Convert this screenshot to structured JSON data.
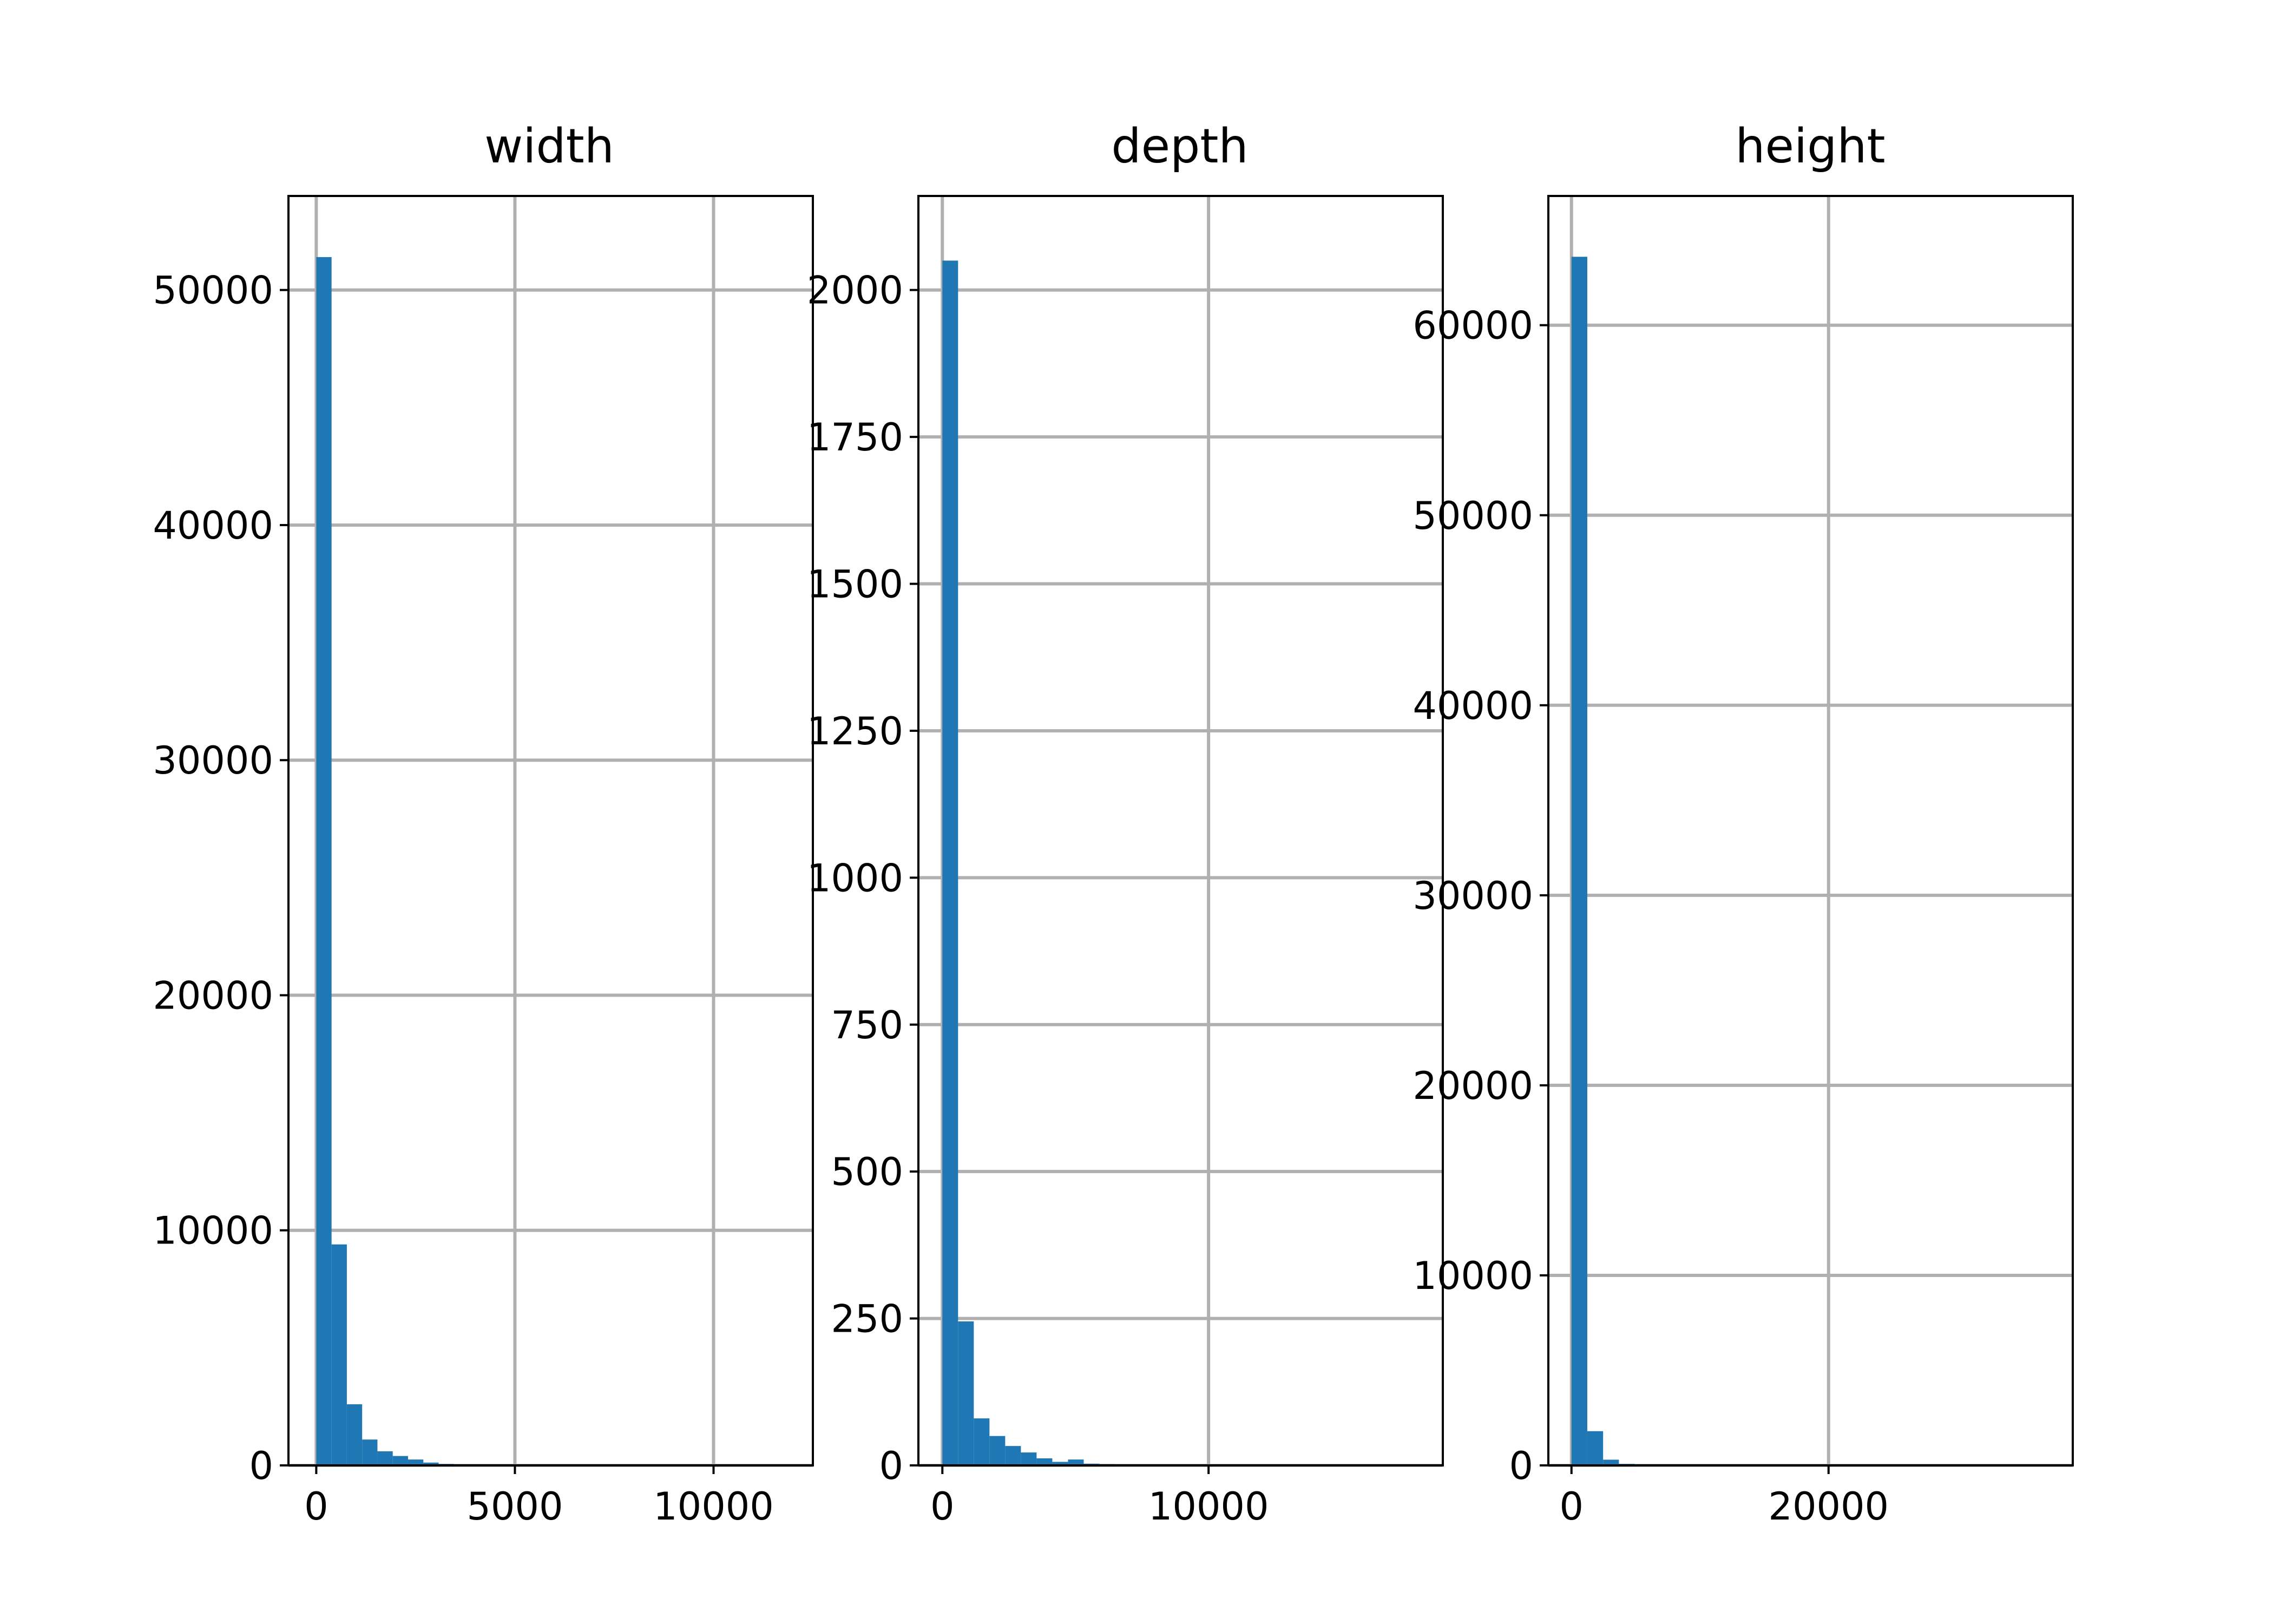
{
  "colors": {
    "bar": "#1f77b4",
    "grid": "#b0b0b0",
    "axis": "#000000"
  },
  "chart_data": [
    {
      "type": "histogram",
      "title": "width",
      "xlim": [
        -700,
        12500
      ],
      "ylim": [
        0,
        54000
      ],
      "xticks": [
        0,
        5000,
        10000
      ],
      "xtick_labels": [
        "0",
        "5000",
        "10000"
      ],
      "yticks": [
        0,
        10000,
        20000,
        30000,
        40000,
        50000
      ],
      "ytick_labels": [
        "0",
        "10000",
        "20000",
        "30000",
        "40000",
        "50000"
      ],
      "grid": true,
      "bin_edges": [
        0,
        385,
        770,
        1155,
        1540,
        1925,
        2310,
        2695,
        3080,
        3465,
        3850,
        4235,
        4620,
        5005,
        5390,
        5775,
        6160,
        6545,
        6930,
        7315,
        7700,
        8085,
        8470,
        8855,
        9240,
        9625,
        10010,
        10395,
        10780,
        11165,
        11550
      ],
      "counts": [
        51400,
        9400,
        2600,
        1100,
        600,
        400,
        250,
        120,
        60,
        30,
        15,
        8,
        5,
        3,
        2,
        1,
        1,
        1,
        0,
        0,
        0,
        0,
        0,
        0,
        0,
        0,
        0,
        0,
        0,
        1
      ]
    },
    {
      "type": "histogram",
      "title": "depth",
      "xlim": [
        -900,
        18800
      ],
      "ylim": [
        0,
        2160
      ],
      "xticks": [
        0,
        10000
      ],
      "xtick_labels": [
        "0",
        "10000"
      ],
      "yticks": [
        0,
        250,
        500,
        750,
        1000,
        1250,
        1500,
        1750,
        2000
      ],
      "ytick_labels": [
        "0",
        "250",
        "500",
        "750",
        "1000",
        "1250",
        "1500",
        "1750",
        "2000"
      ],
      "grid": true,
      "bin_edges": [
        0,
        590,
        1180,
        1770,
        2360,
        2950,
        3540,
        4130,
        4720,
        5310,
        5900,
        6490,
        7080,
        7670,
        8260,
        8850,
        9440,
        10030,
        10620,
        11210,
        11800,
        12390,
        12980,
        13570,
        14160,
        14750,
        15340,
        15930,
        16520,
        17110,
        17700
      ],
      "counts": [
        2050,
        245,
        80,
        50,
        33,
        22,
        12,
        6,
        10,
        3,
        2,
        1,
        1,
        0,
        1,
        0,
        0,
        0,
        0,
        0,
        0,
        0,
        0,
        0,
        0,
        0,
        0,
        0,
        0,
        1
      ]
    },
    {
      "type": "histogram",
      "title": "height",
      "xlim": [
        -1800,
        39000
      ],
      "ylim": [
        0,
        66800
      ],
      "xticks": [
        0,
        20000
      ],
      "xtick_labels": [
        "0",
        "20000"
      ],
      "yticks": [
        0,
        10000,
        20000,
        30000,
        40000,
        50000,
        60000
      ],
      "ytick_labels": [
        "0",
        "10000",
        "20000",
        "30000",
        "40000",
        "50000",
        "60000"
      ],
      "grid": true,
      "bin_edges": [
        0,
        1230,
        2460,
        3690,
        4920,
        6150,
        7380,
        8610,
        9840,
        11070,
        12300,
        13530,
        14760,
        15990,
        17220,
        18450,
        19680,
        20910,
        22140,
        23370,
        24600,
        25830,
        27060,
        28290,
        29520,
        30750,
        31980,
        33210,
        34440,
        35670,
        36900
      ],
      "counts": [
        63600,
        1800,
        300,
        80,
        30,
        15,
        8,
        4,
        2,
        2,
        1,
        1,
        0,
        0,
        0,
        0,
        0,
        0,
        0,
        0,
        0,
        0,
        0,
        0,
        0,
        0,
        0,
        0,
        0,
        1
      ]
    }
  ]
}
